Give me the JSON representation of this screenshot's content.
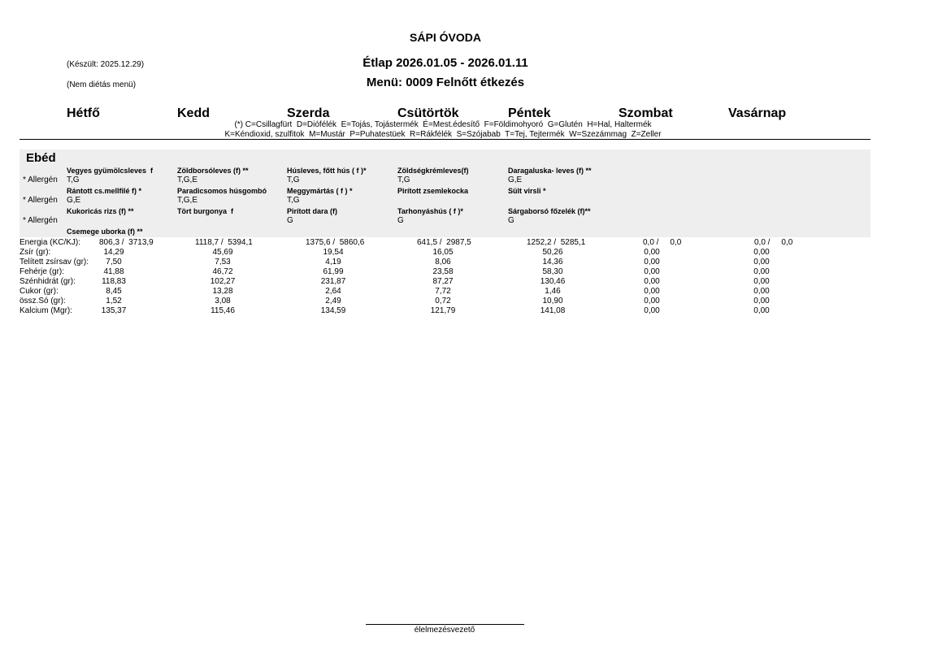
{
  "header": {
    "school": "SÁPI ÓVODA",
    "created": "(Készült: 2025.12.29)",
    "note": "(Nem diétás menü)",
    "title": "Étlap 2026.01.05 - 2026.01.11",
    "menu": "Menü: 0009 Felnőtt étkezés"
  },
  "days": [
    "Hétfő",
    "Kedd",
    "Szerda",
    "Csütörtök",
    "Péntek",
    "Szombat",
    "Vasárnap"
  ],
  "legend": [
    "(*) C=Csillagfürt  D=Diófélék  E=Tojás, Tojástermék  É=Mest.édesítő  F=Földimohyoró  G=Glutén  H=Hal, Haltermék",
    "K=Kéndioxid, szulfitok  M=Mustár  P=Puhatestüek  R=Rákfélék  S=Szójabab  T=Tej, Tejtermék  W=Szezámmag  Z=Zeller"
  ],
  "meal": {
    "name": "Ebéd",
    "allergen_label": "* Allergén",
    "courses": [
      [
        {
          "name": "Vegyes gyümölcsleves  f",
          "allergens": "T,G"
        },
        {
          "name": "Zöldborsóleves (f) **",
          "allergens": "T,G,E"
        },
        {
          "name": "Húsleves, főtt hús ( f )*",
          "allergens": "T,G"
        },
        {
          "name": "Zöldségkrémleves(f)",
          "allergens": "T,G"
        },
        {
          "name": "Daragaluska- leves (f) **",
          "allergens": "G,E"
        }
      ],
      [
        {
          "name": "Rántott cs.mellfilé f) *",
          "allergens": "G,E"
        },
        {
          "name": "Paradicsomos húsgombó",
          "allergens": "T,G,E"
        },
        {
          "name": "Meggymártás ( f ) *",
          "allergens": "T,G"
        },
        {
          "name": "Pirított zsemlekocka"
        },
        {
          "name": "Sült virsli *"
        }
      ],
      [
        {
          "name": "Kukoricás rizs (f) **"
        },
        {
          "name": "Tört burgonya  f"
        },
        {
          "name": "Pirított dara (f)",
          "allergens": "G"
        },
        {
          "name": "Tarhonyáshús ( f )*",
          "allergens": "G"
        },
        {
          "name": "Sárgaborsó főzelék (f)**",
          "allergens": "G"
        }
      ],
      [
        {
          "name": "Csemege uborka (f) **"
        }
      ]
    ]
  },
  "nutrition": [
    {
      "label": "Energia (KC/KJ):",
      "values": [
        "806,3 /  3713,9",
        "1118,7 /  5394,1",
        "1375,6 /  5860,6",
        "641,5 /  2987,5",
        "1252,2 /  5285,1",
        "0,0 /     0,0",
        "0,0 /     0,0"
      ]
    },
    {
      "label": "Zsír (gr):",
      "values": [
        "14,29",
        "45,69",
        "19,54",
        "16,05",
        "50,26",
        "0,00",
        "0,00"
      ]
    },
    {
      "label": "Telített zsírsav (gr):",
      "values": [
        "7,50",
        "7,53",
        "4,19",
        "8,06",
        "14,36",
        "0,00",
        "0,00"
      ]
    },
    {
      "label": "Fehérje (gr):",
      "values": [
        "41,88",
        "46,72",
        "61,99",
        "23,58",
        "58,30",
        "0,00",
        "0,00"
      ]
    },
    {
      "label": "Szénhidrát (gr):",
      "values": [
        "118,83",
        "102,27",
        "231,87",
        "87,27",
        "130,46",
        "0,00",
        "0,00"
      ]
    },
    {
      "label": "Cukor (gr):",
      "values": [
        "8,45",
        "13,28",
        "2,64",
        "7,72",
        "1,46",
        "0,00",
        "0,00"
      ]
    },
    {
      "label": "össz.Só (gr):",
      "values": [
        "1,52",
        "3,08",
        "2,49",
        "0,72",
        "10,90",
        "0,00",
        "0,00"
      ]
    },
    {
      "label": "Kalcium (Mgr):",
      "values": [
        "135,37",
        "115,46",
        "134,59",
        "121,79",
        "141,08",
        "0,00",
        "0,00"
      ]
    }
  ],
  "footer": {
    "signature": "élelmezésvezető"
  }
}
